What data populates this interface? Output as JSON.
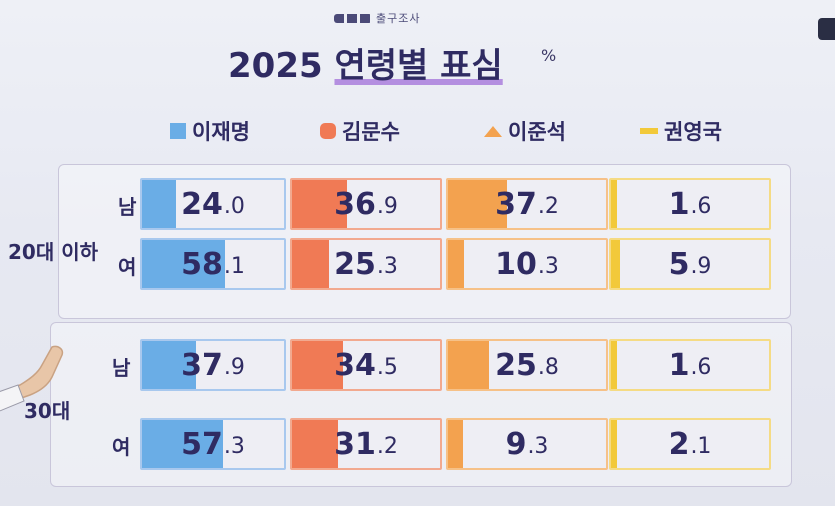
{
  "brand": "출구조사",
  "title": {
    "year": "2025",
    "main": "연령별 표심",
    "unit": "%"
  },
  "colors": {
    "lee_jm": "#6aade6",
    "kim_ms": "#f07a55",
    "lee_js": "#f3a24f",
    "kwon_yg": "#f2c93a",
    "cell_bg": "#eeeef4",
    "text": "#2f2b62"
  },
  "legend": [
    {
      "name": "이재명",
      "color": "#6aade6",
      "marker": "square"
    },
    {
      "name": "김문수",
      "color": "#f07a55",
      "marker": "rounded-square"
    },
    {
      "name": "이준석",
      "color": "#f3a24f",
      "marker": "chevron"
    },
    {
      "name": "권영국",
      "color": "#f2c93a",
      "marker": "bar"
    }
  ],
  "groups": [
    {
      "label": "20대 이하",
      "rows": [
        {
          "gender": "남",
          "values": [
            {
              "int": "24",
              "dec": ".0",
              "v": 24.0
            },
            {
              "int": "36",
              "dec": ".9",
              "v": 36.9
            },
            {
              "int": "37",
              "dec": ".2",
              "v": 37.2
            },
            {
              "int": "1",
              "dec": ".6",
              "v": 1.6
            }
          ]
        },
        {
          "gender": "여",
          "values": [
            {
              "int": "58",
              "dec": ".1",
              "v": 58.1
            },
            {
              "int": "25",
              "dec": ".3",
              "v": 25.3
            },
            {
              "int": "10",
              "dec": ".3",
              "v": 10.3
            },
            {
              "int": "5",
              "dec": ".9",
              "v": 5.9
            }
          ]
        }
      ]
    },
    {
      "label": "30대",
      "rows": [
        {
          "gender": "남",
          "values": [
            {
              "int": "37",
              "dec": ".9",
              "v": 37.9
            },
            {
              "int": "34",
              "dec": ".5",
              "v": 34.5
            },
            {
              "int": "25",
              "dec": ".8",
              "v": 25.8
            },
            {
              "int": "1",
              "dec": ".6",
              "v": 1.6
            }
          ]
        },
        {
          "gender": "여",
          "values": [
            {
              "int": "57",
              "dec": ".3",
              "v": 57.3
            },
            {
              "int": "31",
              "dec": ".2",
              "v": 31.2
            },
            {
              "int": "9",
              "dec": ".3",
              "v": 9.3
            },
            {
              "int": "2",
              "dec": ".1",
              "v": 2.1
            }
          ]
        }
      ]
    }
  ],
  "chart_data": {
    "type": "table",
    "title": "2025 연령별 표심",
    "unit": "%",
    "columns": [
      "이재명",
      "김문수",
      "이준석",
      "권영국"
    ],
    "rows": [
      {
        "age": "20대 이하",
        "gender": "남",
        "values": [
          24.0,
          36.9,
          37.2,
          1.6
        ]
      },
      {
        "age": "20대 이하",
        "gender": "여",
        "values": [
          58.1,
          25.3,
          10.3,
          5.9
        ]
      },
      {
        "age": "30대",
        "gender": "남",
        "values": [
          37.9,
          34.5,
          25.8,
          1.6
        ]
      },
      {
        "age": "30대",
        "gender": "여",
        "values": [
          57.3,
          31.2,
          9.3,
          2.1
        ]
      }
    ]
  }
}
